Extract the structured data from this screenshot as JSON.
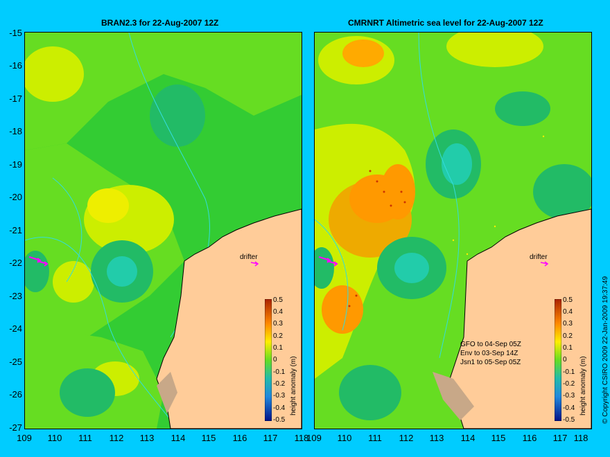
{
  "left_panel": {
    "title": "BRAN2.3 for 22-Aug-2007 12Z",
    "drifter_label": "drifter",
    "colorbar_title": "height anomaly (m)"
  },
  "right_panel": {
    "title": "CMRNRT Altimetric sea level  for 22-Aug-2007 12Z",
    "drifter_label": "drifter",
    "colorbar_title": "height anomaly (m)",
    "satellite_passes": [
      "GFO to 04-Sep 05Z",
      "Env to 03-Sep 14Z",
      "Jsn1 to 05-Sep 05Z"
    ]
  },
  "y_ticks": [
    "-15",
    "-16",
    "-17",
    "-18",
    "-19",
    "-20",
    "-21",
    "-22",
    "-23",
    "-24",
    "-25",
    "-26",
    "-27"
  ],
  "x_ticks": [
    "109",
    "110",
    "111",
    "112",
    "113",
    "114",
    "115",
    "116",
    "117",
    "118"
  ],
  "colorbar_ticks": [
    "0.5",
    "0.4",
    "0.3",
    "0.2",
    "0.1",
    "0",
    "-0.1",
    "-0.2",
    "-0.3",
    "-0.4",
    "-0.5"
  ],
  "copyright": "© Copyright CSIRO 2009  22-Jan-2009 19:37:49",
  "colors": {
    "background": "#00ccff",
    "land": "#ffcc99",
    "ocean_green": "#33cc33",
    "light_green": "#66dd22",
    "yellow_green": "#ccee00",
    "drifter_arrow": "#ff00ff",
    "coastline_contour": "#33dddd"
  },
  "map_extent": {
    "lon": [
      109,
      118
    ],
    "lat": [
      -27,
      -15
    ]
  }
}
